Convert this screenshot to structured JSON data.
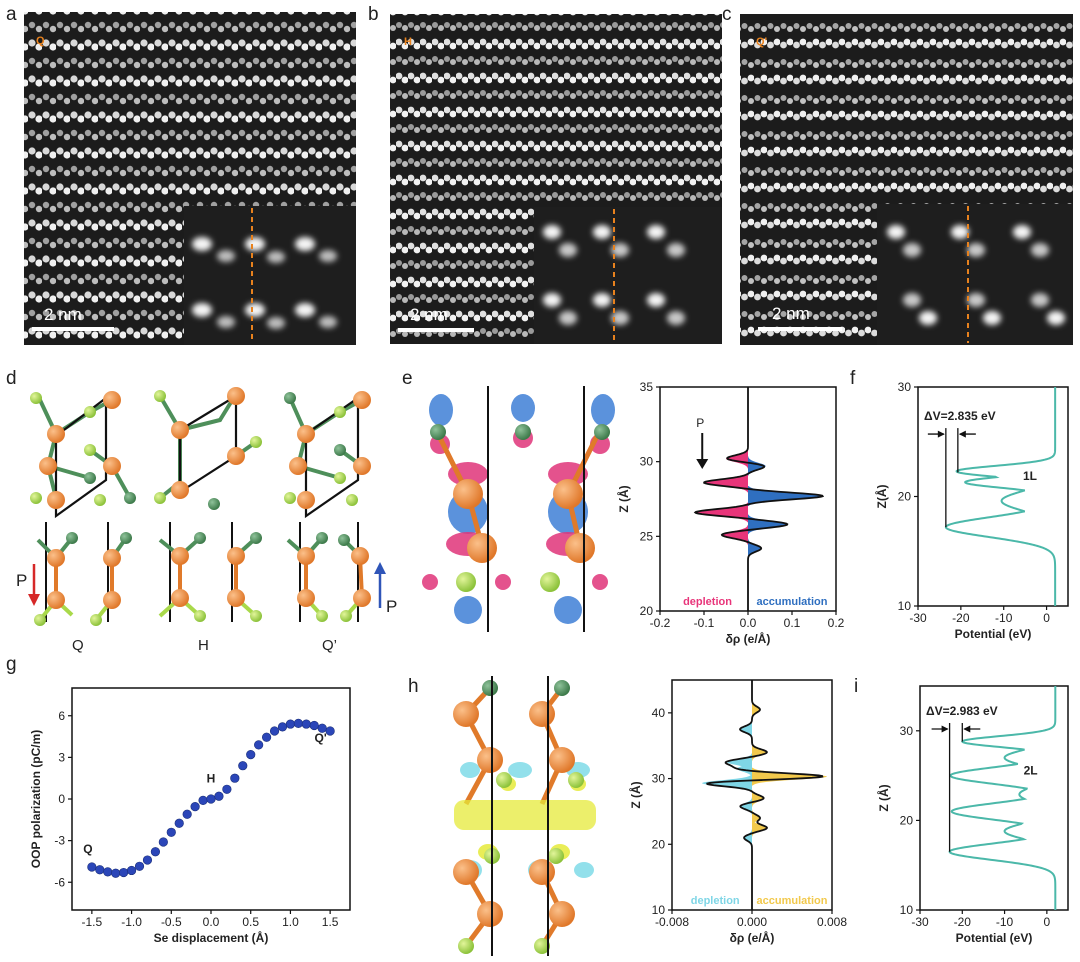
{
  "panel_letters": {
    "a": "a",
    "b": "b",
    "c": "c",
    "d": "d",
    "e": "e",
    "f": "f",
    "g": "g",
    "h": "h",
    "i": "i"
  },
  "stem": {
    "a": {
      "tag": "Q",
      "scale": "2 nm"
    },
    "b": {
      "tag": "H",
      "scale": "2 nm"
    },
    "c": {
      "tag": "Q'",
      "scale": "2 nm"
    },
    "tag_color": "#e8821e"
  },
  "structures": {
    "labels": [
      "Q",
      "H",
      "Q’"
    ],
    "polarization_symbol": "P",
    "colors": {
      "metal": "#f08a3a",
      "se_light": "#a9d94a",
      "se_dark": "#4e8f5a",
      "bond": "#e07a2a",
      "p_down": "#d62828",
      "p_up": "#2f55b8"
    }
  },
  "colors": {
    "accent_teal": "#4bb8a9",
    "depletion_pink": "#e8357a",
    "accumulation_blue": "#2f6fc0",
    "depletion_cyan": "#7fd6e6",
    "accumulation_yellow": "#f2c94c",
    "point_blue": "#2b46b8"
  },
  "chart_data": [
    {
      "id": "e",
      "type": "area",
      "xlabel": "δρ (e/Å)",
      "ylabel": "Z (Å)",
      "xlim": [
        -0.2,
        0.2
      ],
      "ylim": [
        20,
        35
      ],
      "xticks": [
        "-0.2",
        "-0.1",
        "0.0",
        "0.1",
        "0.2"
      ],
      "xtick_values": [
        -0.2,
        -0.1,
        0.0,
        0.1,
        0.2
      ],
      "yticks": [
        "20",
        "25",
        "30",
        "35"
      ],
      "ytick_values": [
        20,
        25,
        30,
        35
      ],
      "arrow_label": "P",
      "depletion_label": "depletion",
      "accumulation_label": "accumulation",
      "peaks": [
        {
          "z": 30.2,
          "v": -0.05
        },
        {
          "z": 29.7,
          "v": 0.04
        },
        {
          "z": 28.6,
          "v": -0.1
        },
        {
          "z": 27.7,
          "v": 0.17
        },
        {
          "z": 26.6,
          "v": -0.12
        },
        {
          "z": 25.8,
          "v": 0.09
        },
        {
          "z": 25.1,
          "v": -0.06
        },
        {
          "z": 24.2,
          "v": 0.03
        }
      ],
      "width": 0.22
    },
    {
      "id": "f",
      "type": "line",
      "xlabel": "Potential (eV)",
      "ylabel": "Z(Å)",
      "xlim": [
        -30,
        5
      ],
      "ylim": [
        10,
        30
      ],
      "xticks": [
        "-30",
        "-20",
        "-10",
        "0"
      ],
      "xtick_values": [
        -30,
        -20,
        -10,
        0
      ],
      "yticks": [
        "10",
        "20",
        "30"
      ],
      "ytick_values": [
        10,
        20,
        30
      ],
      "annotation": "ΔV=2.835 eV",
      "layer_label": "1L",
      "vline_low": -23.5,
      "vline_high": -20.7,
      "z_low": 17.2,
      "z_high": 22.2,
      "z_arrow": 25.7,
      "baseline": 2.0,
      "valleys": [
        {
          "z": 17.2,
          "v": -23.5,
          "w": 0.9
        },
        {
          "z": 19.6,
          "v": -10.5,
          "w": 0.9
        },
        {
          "z": 21.3,
          "v": -19.0,
          "w": 0.5
        },
        {
          "z": 22.3,
          "v": -21.0,
          "w": 0.5
        }
      ]
    },
    {
      "id": "g",
      "type": "scatter",
      "xlabel": "Se displacement (Å)",
      "ylabel": "OOP polarization (pC/m)",
      "xlim": [
        -1.75,
        1.75
      ],
      "ylim": [
        -8,
        8
      ],
      "xticks": [
        "-1.5",
        "-1.0",
        "-0.5",
        "0.0",
        "0.5",
        "1.0",
        "1.5"
      ],
      "xtick_values": [
        -1.5,
        -1.0,
        -0.5,
        0.0,
        0.5,
        1.0,
        1.5
      ],
      "yticks": [
        "-6",
        "-3",
        "0",
        "3",
        "6"
      ],
      "ytick_values": [
        -6,
        -3,
        0,
        3,
        6
      ],
      "point_labels": [
        {
          "text": "Q",
          "x": -1.55,
          "y": -3.9
        },
        {
          "text": "H",
          "x": 0.0,
          "y": 1.2
        },
        {
          "text": "Q'",
          "x": 1.38,
          "y": 4.1
        }
      ],
      "x": [
        -1.5,
        -1.4,
        -1.3,
        -1.2,
        -1.1,
        -1.0,
        -0.9,
        -0.8,
        -0.7,
        -0.6,
        -0.5,
        -0.4,
        -0.3,
        -0.2,
        -0.1,
        0.0,
        0.1,
        0.2,
        0.3,
        0.4,
        0.5,
        0.6,
        0.7,
        0.8,
        0.9,
        1.0,
        1.1,
        1.2,
        1.3,
        1.4,
        1.5
      ],
      "y": [
        -4.9,
        -5.1,
        -5.25,
        -5.35,
        -5.3,
        -5.15,
        -4.85,
        -4.4,
        -3.8,
        -3.1,
        -2.4,
        -1.75,
        -1.1,
        -0.55,
        -0.1,
        0.0,
        0.2,
        0.7,
        1.5,
        2.4,
        3.2,
        3.9,
        4.45,
        4.9,
        5.2,
        5.4,
        5.45,
        5.4,
        5.3,
        5.1,
        4.9
      ]
    },
    {
      "id": "h",
      "type": "area",
      "xlabel": "δρ (e/Å)",
      "ylabel": "Z (Å)",
      "xlim": [
        -0.008,
        0.008
      ],
      "ylim": [
        10,
        45
      ],
      "xticks": [
        "-0.008",
        "0.000",
        "0.008"
      ],
      "xtick_values": [
        -0.008,
        0.0,
        0.008
      ],
      "yticks": [
        "10",
        "20",
        "30",
        "40"
      ],
      "ytick_values": [
        10,
        20,
        30,
        40
      ],
      "depletion_label": "depletion",
      "accumulation_label": "accumulation",
      "peaks": [
        {
          "z": 40.5,
          "v": 0.0008
        },
        {
          "z": 37.5,
          "v": -0.0012
        },
        {
          "z": 34.0,
          "v": 0.0015
        },
        {
          "z": 32.5,
          "v": -0.0025
        },
        {
          "z": 31.5,
          "v": -0.0015
        },
        {
          "z": 30.3,
          "v": 0.0075
        },
        {
          "z": 29.3,
          "v": -0.005
        },
        {
          "z": 27.0,
          "v": 0.0012
        },
        {
          "z": 25.8,
          "v": -0.0012
        },
        {
          "z": 24.0,
          "v": 0.0008
        },
        {
          "z": 22.5,
          "v": 0.0015
        },
        {
          "z": 21.0,
          "v": -0.0008
        }
      ],
      "width": 0.45
    },
    {
      "id": "i",
      "type": "line",
      "xlabel": "Potential (eV)",
      "ylabel": "Z (Å)",
      "xlim": [
        -30,
        5
      ],
      "ylim": [
        10,
        35
      ],
      "xticks": [
        "-30",
        "-20",
        "-10",
        "0"
      ],
      "xtick_values": [
        -30,
        -20,
        -10,
        0
      ],
      "yticks": [
        "10",
        "20",
        "30"
      ],
      "ytick_values": [
        10,
        20,
        30
      ],
      "annotation": "ΔV=2.983 eV",
      "layer_label": "2L",
      "vline_low": -23.0,
      "vline_high": -20.0,
      "z_low": 16.5,
      "z_high": 28.8,
      "z_arrow": 30.2,
      "baseline": 2.0,
      "valleys": [
        {
          "z": 16.5,
          "v": -23.0,
          "w": 0.9
        },
        {
          "z": 18.8,
          "v": -10.0,
          "w": 0.9
        },
        {
          "z": 21.0,
          "v": -22.5,
          "w": 0.9
        },
        {
          "z": 22.9,
          "v": -6.5,
          "w": 0.9
        },
        {
          "z": 25.0,
          "v": -22.8,
          "w": 0.9
        },
        {
          "z": 27.0,
          "v": -10.0,
          "w": 0.9
        },
        {
          "z": 28.8,
          "v": -20.0,
          "w": 0.6
        }
      ]
    }
  ]
}
